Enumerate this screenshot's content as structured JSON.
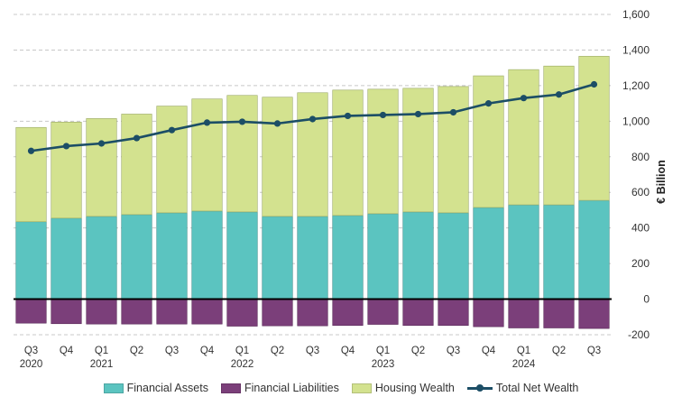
{
  "chart_data": {
    "type": "bar",
    "stacked": true,
    "title": "",
    "xlabel": "",
    "ylabel": "€ Billion",
    "ylim": [
      -200,
      1600
    ],
    "yticks": [
      -200,
      0,
      200,
      400,
      600,
      800,
      1000,
      1200,
      1400,
      1600
    ],
    "ytick_labels": [
      "-200",
      "0",
      "200",
      "400",
      "600",
      "800",
      "1,000",
      "1,200",
      "1,400",
      "1,600"
    ],
    "grid": "horizontal dashed",
    "categories": [
      "Q3",
      "Q4",
      "Q1",
      "Q2",
      "Q3",
      "Q4",
      "Q1",
      "Q2",
      "Q3",
      "Q4",
      "Q1",
      "Q2",
      "Q3",
      "Q4",
      "Q1",
      "Q2",
      "Q3"
    ],
    "year_labels": [
      "2020",
      "",
      "2021",
      "",
      "",
      "",
      "2022",
      "",
      "",
      "",
      "2023",
      "",
      "",
      "",
      "2024",
      "",
      ""
    ],
    "series": [
      {
        "name": "Financial Assets",
        "kind": "bar",
        "color": "#5BC4C0",
        "values": [
          435,
          455,
          465,
          475,
          485,
          495,
          490,
          465,
          465,
          470,
          480,
          490,
          485,
          515,
          530,
          530,
          555
        ]
      },
      {
        "name": "Financial Liabilities",
        "kind": "bar",
        "color": "#7B3F7A",
        "values": [
          -135,
          -138,
          -140,
          -140,
          -140,
          -140,
          -152,
          -150,
          -150,
          -148,
          -142,
          -148,
          -148,
          -155,
          -162,
          -162,
          -165
        ]
      },
      {
        "name": "Housing Wealth",
        "kind": "bar",
        "color": "#D3E28F",
        "values": [
          530,
          540,
          550,
          565,
          600,
          630,
          655,
          670,
          695,
          705,
          700,
          695,
          710,
          740,
          760,
          780,
          810
        ]
      },
      {
        "name": "Total Net Wealth",
        "kind": "line",
        "color": "#1C4E66",
        "values": [
          833,
          860,
          875,
          905,
          950,
          992,
          997,
          987,
          1012,
          1030,
          1035,
          1040,
          1050,
          1100,
          1130,
          1150,
          1207
        ]
      }
    ],
    "legend_position": "bottom"
  }
}
